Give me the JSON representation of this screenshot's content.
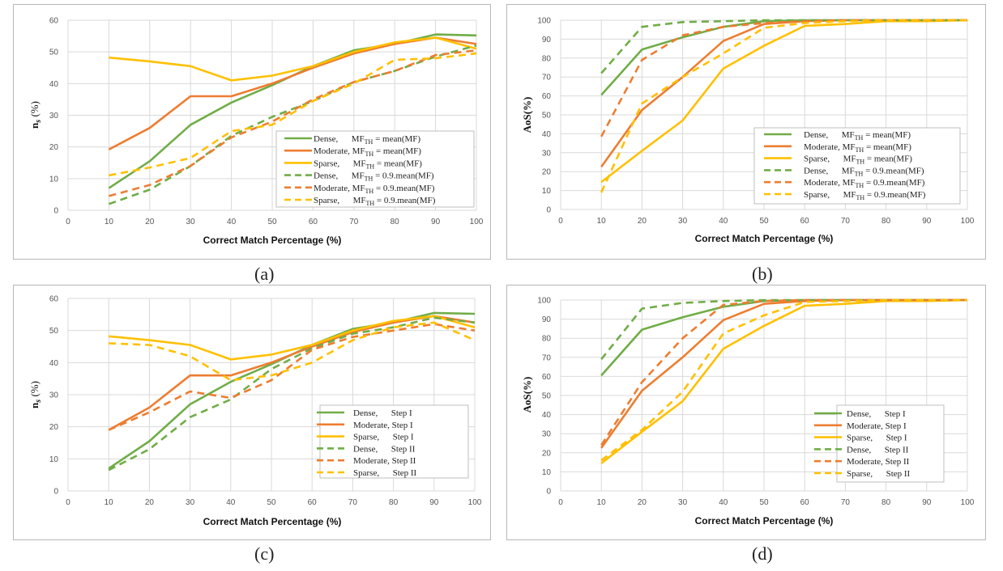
{
  "colors": {
    "Dense": "#70ad47",
    "Moderate": "#ed7d31",
    "Sparse": "#ffc000"
  },
  "chart_data": [
    {
      "id": "a",
      "type": "line",
      "caption": "(a)",
      "xlabel": "Correct Match Percentage (%)",
      "ylabel": "n_s (%)",
      "ylabel_main": "n",
      "ylabel_sub": "s",
      "ylabel_rest": " (%)",
      "xlim": [
        0,
        100
      ],
      "ylim": [
        0,
        60
      ],
      "xticks": [
        "0",
        "10",
        "20",
        "30",
        "40",
        "50",
        "60",
        "70",
        "80",
        "90",
        "100"
      ],
      "yticks": [
        "0",
        "10",
        "20",
        "30",
        "40",
        "50",
        "60"
      ],
      "legend_position": "lower-right",
      "x": [
        10,
        20,
        30,
        40,
        50,
        60,
        70,
        80,
        90,
        100
      ],
      "series": [
        {
          "name": "Dense,      MF_TH = mean(MF)",
          "label_a": "Dense,      MF",
          "label_sub": "TH",
          "label_b": " = mean(MF)",
          "group": "Dense",
          "dashed": false,
          "values": [
            7,
            15.5,
            27,
            34,
            39.5,
            45.5,
            50.5,
            52.5,
            55.5,
            55.2
          ]
        },
        {
          "name": "Moderate, MF_TH = mean(MF)",
          "label_a": "Moderate, MF",
          "label_sub": "TH",
          "label_b": " = mean(MF)",
          "group": "Moderate",
          "dashed": false,
          "values": [
            19.2,
            26,
            36,
            36,
            40,
            45,
            49.5,
            52.5,
            54.5,
            52.5
          ]
        },
        {
          "name": "Sparse,      MF_TH = mean(MF)",
          "label_a": "Sparse,      MF",
          "label_sub": "TH",
          "label_b": " = mean(MF)",
          "group": "Sparse",
          "dashed": false,
          "values": [
            48.2,
            47,
            45.5,
            41,
            42.5,
            45.5,
            50,
            53,
            54.5,
            51
          ]
        },
        {
          "name": "Dense,      MF_TH = 0.9.mean(MF)",
          "label_a": "Dense,      MF",
          "label_sub": "TH",
          "label_b": " = 0.9.mean(MF)",
          "group": "Dense",
          "dashed": true,
          "values": [
            2,
            6.5,
            14,
            23.5,
            29.5,
            34.5,
            40.5,
            44,
            48.5,
            52
          ]
        },
        {
          "name": "Moderate, MF_TH = 0.9.mean(MF)",
          "label_a": "Moderate, MF",
          "label_sub": "TH",
          "label_b": " = 0.9.mean(MF)",
          "group": "Moderate",
          "dashed": true,
          "values": [
            4.5,
            8,
            14,
            23,
            28,
            35,
            40.5,
            44,
            49,
            50.5
          ]
        },
        {
          "name": "Sparse,      MF_TH = 0.9.mean(MF)",
          "label_a": "Sparse,      MF",
          "label_sub": "TH",
          "label_b": " = 0.9.mean(MF)",
          "group": "Sparse",
          "dashed": true,
          "values": [
            11,
            13.5,
            16.5,
            25,
            27,
            34.5,
            40,
            47.5,
            48,
            49.5
          ]
        }
      ]
    },
    {
      "id": "b",
      "type": "line",
      "caption": "(b)",
      "xlabel": "Correct Match Percentage (%)",
      "ylabel": "AoS(%)",
      "ylabel_main": "AoS(%)",
      "ylabel_sub": "",
      "ylabel_rest": "",
      "xlim": [
        0,
        100
      ],
      "ylim": [
        0,
        100
      ],
      "xticks": [
        "0",
        "10",
        "20",
        "30",
        "40",
        "50",
        "60",
        "70",
        "80",
        "90",
        "100"
      ],
      "yticks": [
        "0",
        "10",
        "20",
        "30",
        "40",
        "50",
        "60",
        "70",
        "80",
        "90",
        "100"
      ],
      "legend_position": "lower-right",
      "x": [
        10,
        20,
        30,
        40,
        50,
        60,
        70,
        80,
        90,
        100
      ],
      "series": [
        {
          "name": "Dense,      MF_TH = mean(MF)",
          "label_a": "Dense,      MF",
          "label_sub": "TH",
          "label_b": " = mean(MF)",
          "group": "Dense",
          "dashed": false,
          "values": [
            60.5,
            84.5,
            91,
            96.5,
            99.5,
            100,
            100,
            100,
            100,
            100
          ]
        },
        {
          "name": "Moderate, MF_TH = mean(MF)",
          "label_a": "Moderate, MF",
          "label_sub": "TH",
          "label_b": " = mean(MF)",
          "group": "Moderate",
          "dashed": false,
          "values": [
            22.5,
            52.5,
            70,
            89,
            98,
            99.5,
            100,
            100,
            100,
            100
          ]
        },
        {
          "name": "Sparse,      MF_TH = mean(MF)",
          "label_a": "Sparse,      MF",
          "label_sub": "TH",
          "label_b": " = mean(MF)",
          "group": "Sparse",
          "dashed": false,
          "values": [
            14.5,
            31,
            47,
            74.5,
            86.5,
            97,
            98,
            99.5,
            99.5,
            100
          ]
        },
        {
          "name": "Dense,      MF_TH = 0.9.mean(MF)",
          "label_a": "Dense,      MF",
          "label_sub": "TH",
          "label_b": " = 0.9.mean(MF)",
          "group": "Dense",
          "dashed": true,
          "values": [
            72,
            96.5,
            99,
            99.5,
            100,
            100,
            100,
            100,
            100,
            100
          ]
        },
        {
          "name": "Moderate, MF_TH = 0.9.mean(MF)",
          "label_a": "Moderate, MF",
          "label_sub": "TH",
          "label_b": " = 0.9.mean(MF)",
          "group": "Moderate",
          "dashed": true,
          "values": [
            38.5,
            79,
            92,
            96.5,
            98.5,
            99.5,
            100,
            100,
            100,
            100
          ]
        },
        {
          "name": "Sparse,      MF_TH = 0.9.mean(MF)",
          "label_a": "Sparse,      MF",
          "label_sub": "TH",
          "label_b": " = 0.9.mean(MF)",
          "group": "Sparse",
          "dashed": true,
          "values": [
            9,
            56,
            70,
            82.5,
            96,
            98.5,
            99.5,
            100,
            100,
            100
          ]
        }
      ]
    },
    {
      "id": "c",
      "type": "line",
      "caption": "(c)",
      "xlabel": "Correct Match Percentage (%)",
      "ylabel": "n_s (%)",
      "ylabel_main": "n",
      "ylabel_sub": "s",
      "ylabel_rest": " (%)",
      "xlim": [
        0,
        100
      ],
      "ylim": [
        0,
        60
      ],
      "xticks": [
        "0",
        "10",
        "20",
        "30",
        "40",
        "50",
        "60",
        "70",
        "80",
        "90",
        "100"
      ],
      "yticks": [
        "0",
        "10",
        "20",
        "30",
        "40",
        "50",
        "60"
      ],
      "legend_position": "lower-right",
      "x": [
        10,
        20,
        30,
        40,
        50,
        60,
        70,
        80,
        90,
        100
      ],
      "series": [
        {
          "name": "Dense,      Step I",
          "label_a": "Dense,      Step I",
          "label_sub": "",
          "label_b": "",
          "group": "Dense",
          "dashed": false,
          "values": [
            7,
            15.5,
            27,
            34,
            39.5,
            45.5,
            50.5,
            52.5,
            55.5,
            55.2
          ]
        },
        {
          "name": "Moderate, Step I",
          "label_a": "Moderate, Step I",
          "label_sub": "",
          "label_b": "",
          "group": "Moderate",
          "dashed": false,
          "values": [
            19,
            26,
            36,
            36,
            40,
            45,
            49.5,
            52.5,
            54.5,
            52.5
          ]
        },
        {
          "name": "Sparse,      Step I",
          "label_a": "Sparse,      Step I",
          "label_sub": "",
          "label_b": "",
          "group": "Sparse",
          "dashed": false,
          "values": [
            48.2,
            47,
            45.5,
            41,
            42.5,
            45.5,
            50,
            53,
            54.5,
            51
          ]
        },
        {
          "name": "Dense,      Step II",
          "label_a": "Dense,      Step II",
          "label_sub": "",
          "label_b": "",
          "group": "Dense",
          "dashed": true,
          "values": [
            6.5,
            13,
            23,
            28.5,
            38,
            44.5,
            49,
            51,
            54,
            52.5
          ]
        },
        {
          "name": "Moderate, Step II",
          "label_a": "Moderate, Step II",
          "label_sub": "",
          "label_b": "",
          "group": "Moderate",
          "dashed": true,
          "values": [
            19,
            24.5,
            31,
            29,
            34.5,
            44,
            48,
            50,
            52,
            50
          ]
        },
        {
          "name": "Sparse,      Step II",
          "label_a": "Sparse,      Step II",
          "label_sub": "",
          "label_b": "",
          "group": "Sparse",
          "dashed": true,
          "values": [
            46,
            45.5,
            42,
            34.5,
            36,
            40,
            47,
            51,
            52.5,
            47
          ]
        }
      ]
    },
    {
      "id": "d",
      "type": "line",
      "caption": "(d)",
      "xlabel": "Correct Match Percentage (%)",
      "ylabel": "AoS(%)",
      "ylabel_main": "AoS(%)",
      "ylabel_sub": "",
      "ylabel_rest": "",
      "xlim": [
        0,
        100
      ],
      "ylim": [
        0,
        100
      ],
      "xticks": [
        "0",
        "10",
        "20",
        "30",
        "40",
        "50",
        "60",
        "70",
        "80",
        "90",
        "100"
      ],
      "yticks": [
        "0",
        "10",
        "20",
        "30",
        "40",
        "50",
        "60",
        "70",
        "80",
        "90",
        "100"
      ],
      "legend_position": "lower-right",
      "x": [
        10,
        20,
        30,
        40,
        50,
        60,
        70,
        80,
        90,
        100
      ],
      "series": [
        {
          "name": "Dense,      Step I",
          "label_a": "Dense,      Step I",
          "label_sub": "",
          "label_b": "",
          "group": "Dense",
          "dashed": false,
          "values": [
            60.5,
            84.5,
            91,
            96.5,
            99.5,
            100,
            100,
            100,
            100,
            100
          ]
        },
        {
          "name": "Moderate, Step I",
          "label_a": "Moderate, Step I",
          "label_sub": "",
          "label_b": "",
          "group": "Moderate",
          "dashed": false,
          "values": [
            22.5,
            52.5,
            70,
            89.5,
            98,
            99.5,
            100,
            100,
            100,
            100
          ]
        },
        {
          "name": "Sparse,      Step I",
          "label_a": "Sparse,      Step I",
          "label_sub": "",
          "label_b": "",
          "group": "Sparse",
          "dashed": false,
          "values": [
            14.5,
            31,
            47,
            74.5,
            86.5,
            97,
            98,
            99.5,
            99.5,
            100
          ]
        },
        {
          "name": "Dense,      Step II",
          "label_a": "Dense,      Step II",
          "label_sub": "",
          "label_b": "",
          "group": "Dense",
          "dashed": true,
          "values": [
            69,
            95.5,
            98.5,
            99.5,
            100,
            100,
            100,
            100,
            100,
            100
          ]
        },
        {
          "name": "Moderate, Step II",
          "label_a": "Moderate, Step II",
          "label_sub": "",
          "label_b": "",
          "group": "Moderate",
          "dashed": true,
          "values": [
            24,
            57,
            80,
            97.5,
            99.5,
            100,
            100,
            100,
            100,
            100
          ]
        },
        {
          "name": "Sparse,      Step II",
          "label_a": "Sparse,      Step II",
          "label_sub": "",
          "label_b": "",
          "group": "Sparse",
          "dashed": true,
          "values": [
            16,
            32,
            52,
            82.5,
            92,
            99,
            99.5,
            100,
            100,
            100
          ]
        }
      ]
    }
  ]
}
